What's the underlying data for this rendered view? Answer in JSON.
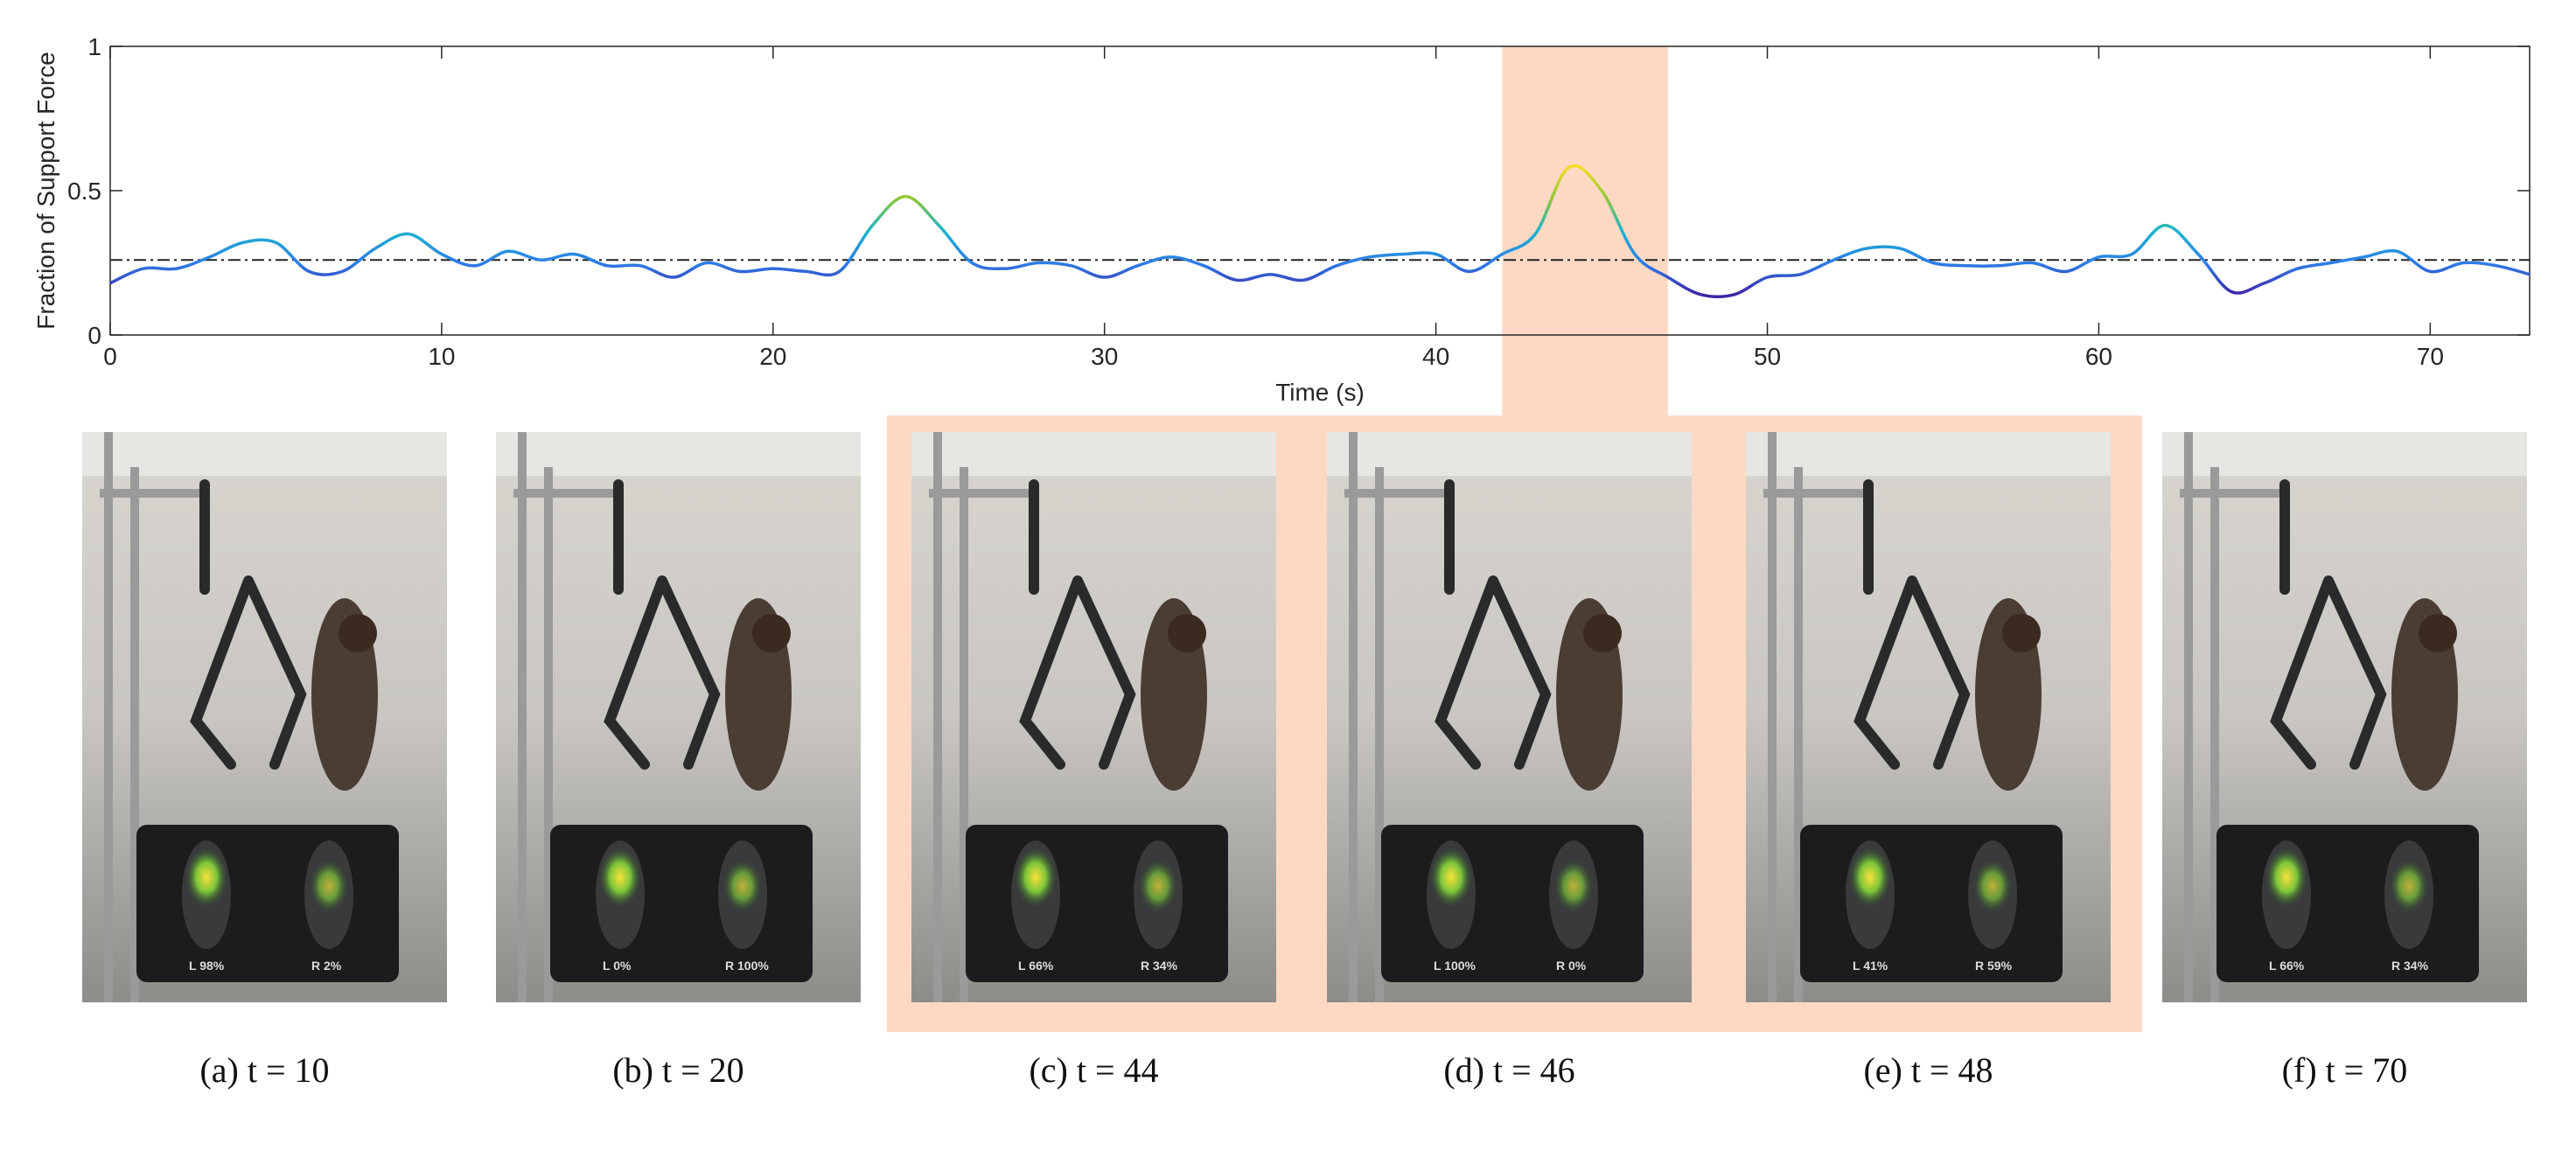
{
  "chart_data": {
    "type": "line",
    "ylabel": "Fraction of Support Force",
    "xlabel": "Time (s)",
    "x": [
      0,
      1,
      2,
      3,
      4,
      5,
      6,
      7,
      8,
      9,
      10,
      11,
      12,
      13,
      14,
      15,
      16,
      17,
      18,
      19,
      20,
      21,
      22,
      23,
      24,
      25,
      26,
      27,
      28,
      29,
      30,
      31,
      32,
      33,
      34,
      35,
      36,
      37,
      38,
      39,
      40,
      41,
      42,
      43,
      44,
      45,
      46,
      47,
      48,
      49,
      50,
      51,
      52,
      53,
      54,
      55,
      56,
      57,
      58,
      59,
      60,
      61,
      62,
      63,
      64,
      65,
      66,
      67,
      68,
      69,
      70,
      71,
      72,
      73
    ],
    "values": [
      0.18,
      0.23,
      0.23,
      0.27,
      0.32,
      0.32,
      0.22,
      0.22,
      0.3,
      0.35,
      0.28,
      0.24,
      0.29,
      0.26,
      0.28,
      0.24,
      0.24,
      0.2,
      0.25,
      0.22,
      0.23,
      0.22,
      0.22,
      0.38,
      0.48,
      0.38,
      0.25,
      0.23,
      0.25,
      0.24,
      0.2,
      0.24,
      0.27,
      0.24,
      0.19,
      0.21,
      0.19,
      0.24,
      0.27,
      0.28,
      0.28,
      0.22,
      0.28,
      0.35,
      0.58,
      0.5,
      0.28,
      0.2,
      0.14,
      0.14,
      0.2,
      0.21,
      0.26,
      0.3,
      0.3,
      0.25,
      0.24,
      0.24,
      0.25,
      0.22,
      0.27,
      0.28,
      0.38,
      0.28,
      0.15,
      0.18,
      0.23,
      0.25,
      0.27,
      0.29,
      0.22,
      0.25,
      0.24,
      0.21
    ],
    "colormap": [
      "#3e26a8",
      "#2d7de8",
      "#19b5cc",
      "#8cc63c",
      "#f5dd2a"
    ],
    "reference_line": 0.26,
    "highlight": [
      42,
      47
    ],
    "highlight_color": "#fdd9c4",
    "xlim": [
      0,
      73
    ],
    "ylim": [
      0,
      1
    ],
    "xticks": [
      0,
      10,
      20,
      30,
      40,
      50,
      60,
      70
    ],
    "yticks": [
      0,
      0.5,
      1
    ]
  },
  "panels": [
    {
      "caption": "(a) t = 10",
      "left": "L 98%",
      "right": "R 2%",
      "highlighted": false
    },
    {
      "caption": "(b) t = 20",
      "left": "L 0%",
      "right": "R 100%",
      "highlighted": false
    },
    {
      "caption": "(c) t = 44",
      "left": "L 66%",
      "right": "R 34%",
      "highlighted": true
    },
    {
      "caption": "(d) t = 46",
      "left": "L 100%",
      "right": "R 0%",
      "highlighted": true
    },
    {
      "caption": "(e) t = 48",
      "left": "L 41%",
      "right": "R 59%",
      "highlighted": true
    },
    {
      "caption": "(f) t = 70",
      "left": "L 66%",
      "right": "R 34%",
      "highlighted": false
    }
  ]
}
